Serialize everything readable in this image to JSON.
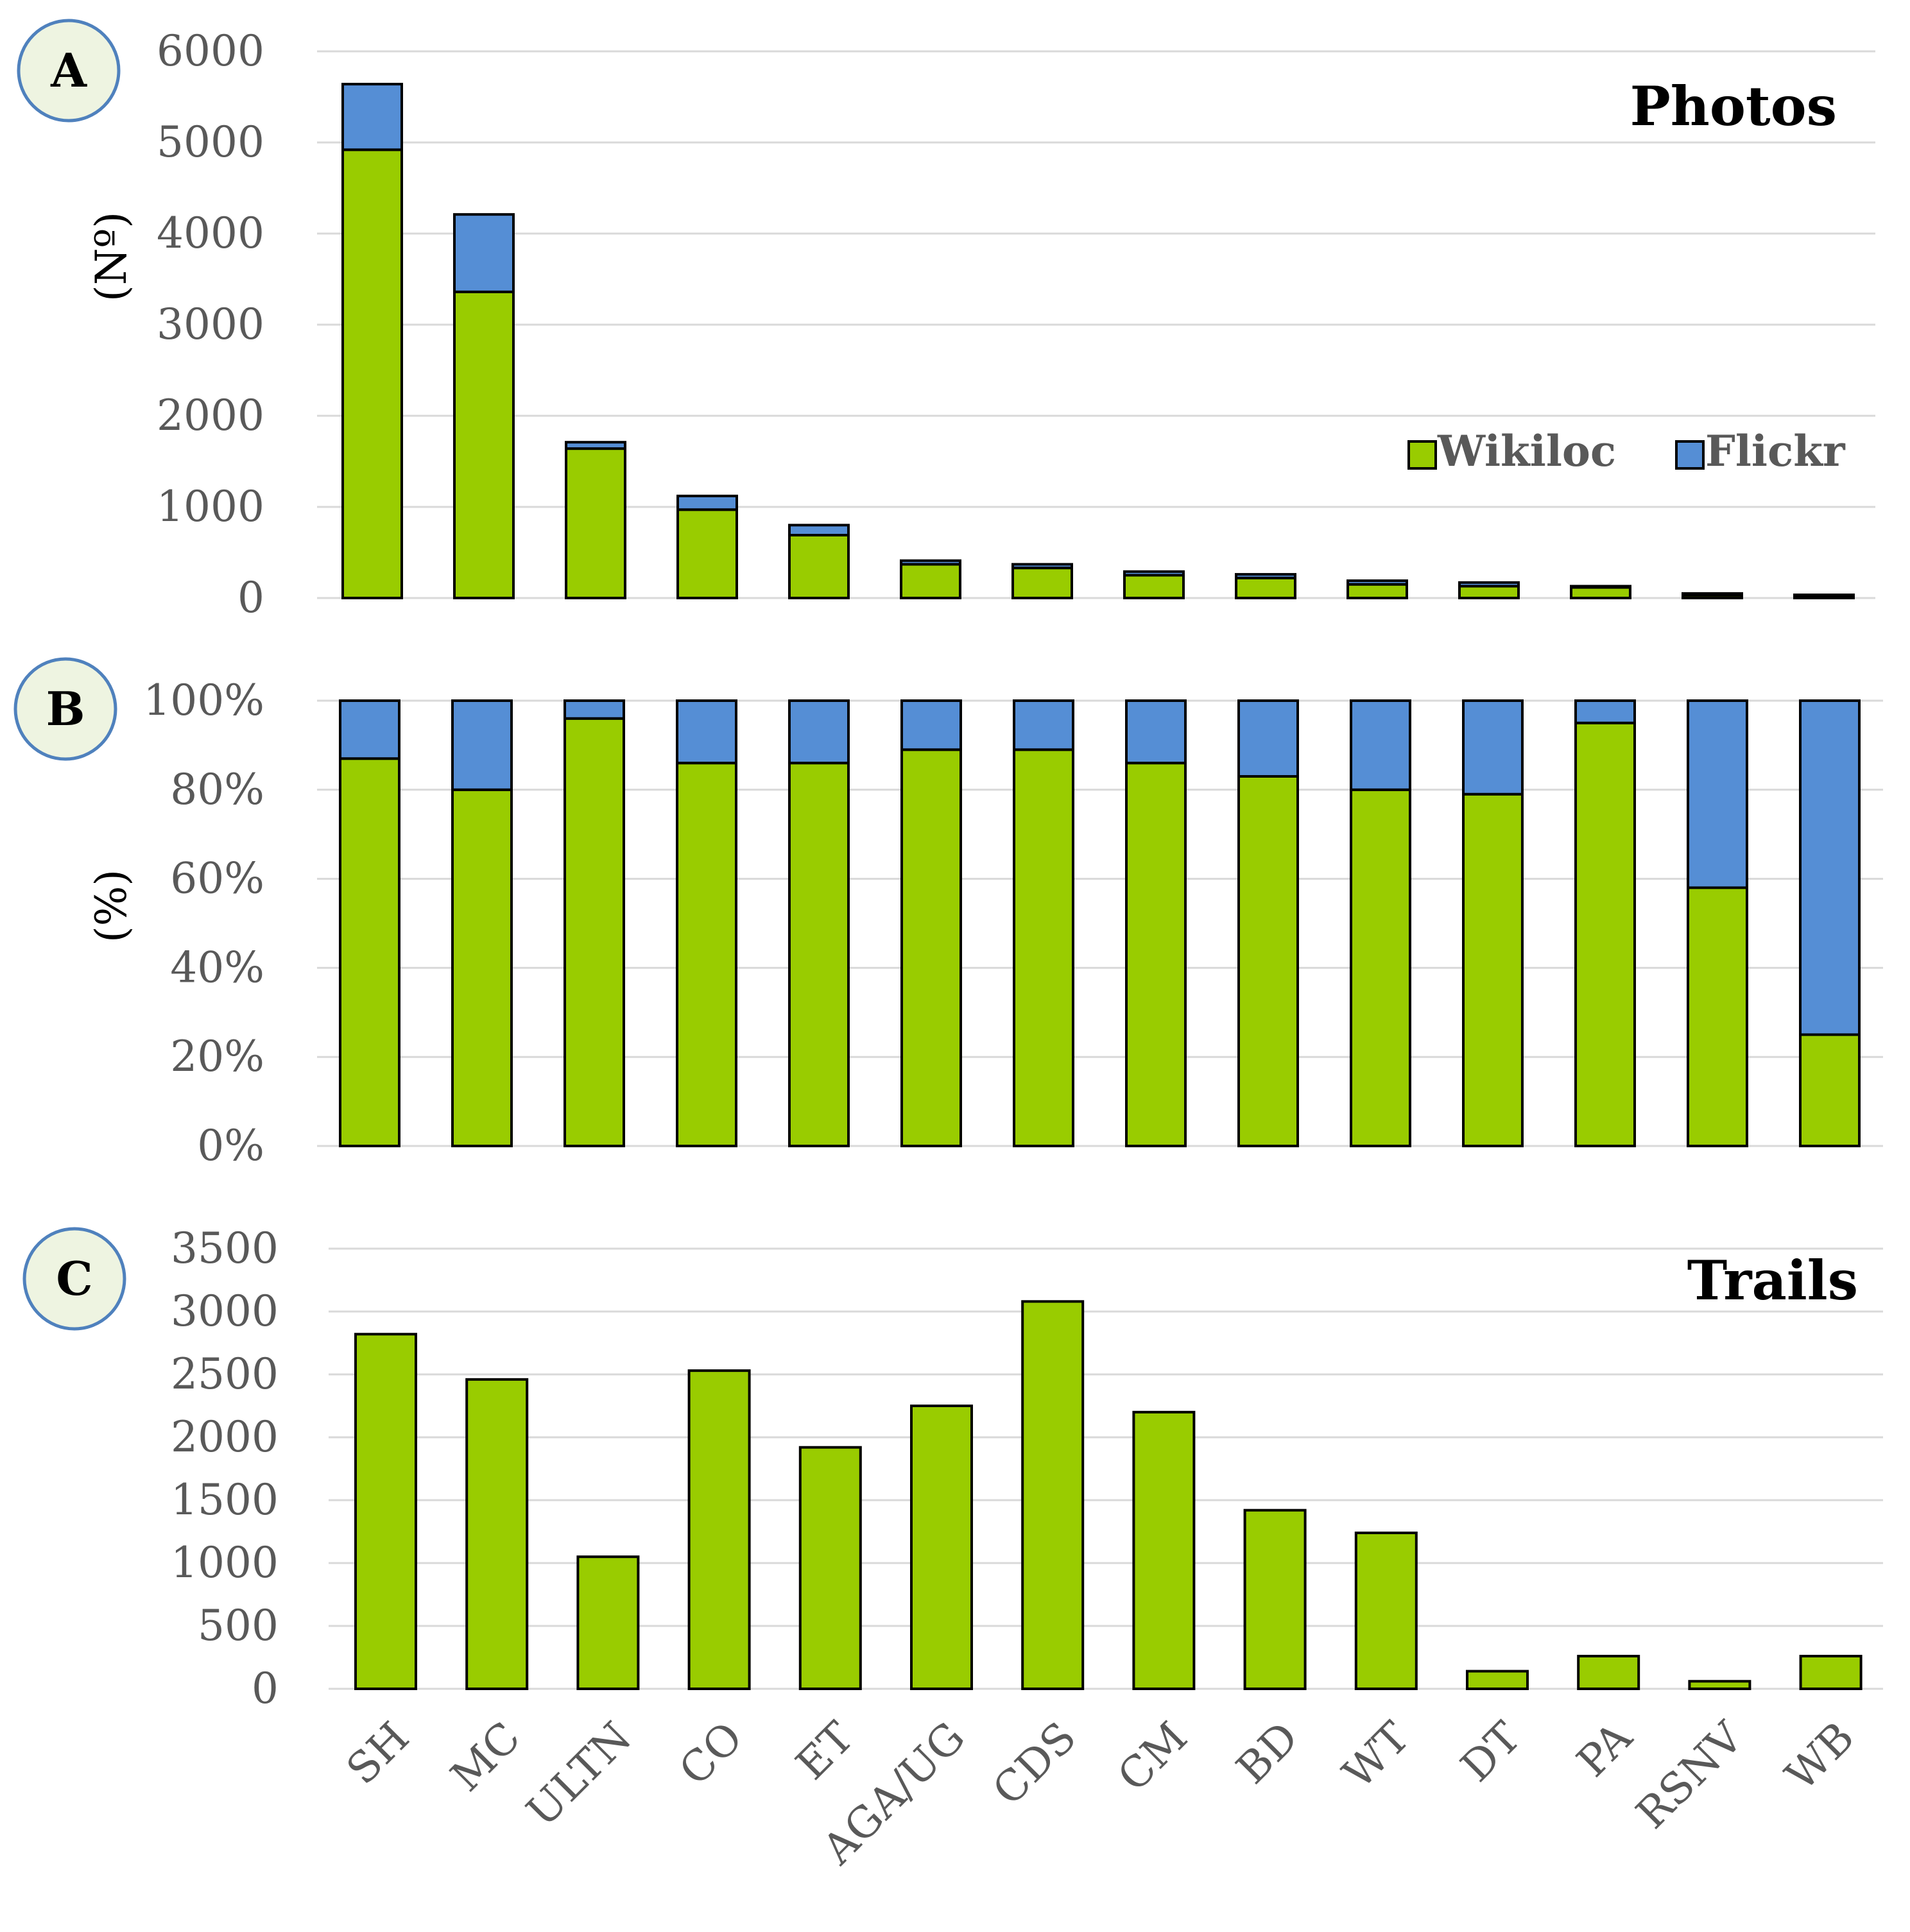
{
  "colors": {
    "wikiloc": "#99cc00",
    "flickr": "#558ed5",
    "bar_stroke": "#000000",
    "grid": "#d9d9d9",
    "badge_fill": "#eef4e1",
    "badge_stroke": "#4f81bd"
  },
  "categories": [
    "SH",
    "MC",
    "ULTN",
    "CO",
    "ET",
    "AGA/UG",
    "CDS",
    "CM",
    "BD",
    "WT",
    "DT",
    "PA",
    "RSNV",
    "WB"
  ],
  "chart_data": [
    {
      "panel": "A",
      "type": "bar",
      "stacked": true,
      "title": "Photos",
      "xlabel": "",
      "ylabel": "(Nº)",
      "ylim": [
        0,
        6000
      ],
      "yticks": [
        "0",
        "1000",
        "2000",
        "3000",
        "4000",
        "5000",
        "6000"
      ],
      "grid": true,
      "legend_position": "right",
      "categories": [
        "SH",
        "MC",
        "ULTN",
        "CO",
        "ET",
        "AGA/UG",
        "CDS",
        "CM",
        "BD",
        "WT",
        "DT",
        "PA",
        "RSNV",
        "WB"
      ],
      "series": [
        {
          "name": "Wikiloc",
          "values": [
            4920,
            3360,
            1640,
            970,
            690,
            370,
            330,
            250,
            220,
            150,
            130,
            120,
            30,
            15
          ]
        },
        {
          "name": "Flickr",
          "values": [
            720,
            850,
            70,
            150,
            110,
            40,
            40,
            40,
            40,
            40,
            40,
            10,
            20,
            20
          ]
        }
      ]
    },
    {
      "panel": "B",
      "type": "bar",
      "stacked": true,
      "percent": true,
      "title": "",
      "xlabel": "",
      "ylabel": "(%)",
      "ylim": [
        0,
        100
      ],
      "yticks": [
        "0%",
        "20%",
        "40%",
        "60%",
        "80%",
        "100%"
      ],
      "grid": true,
      "categories": [
        "SH",
        "MC",
        "ULTN",
        "CO",
        "ET",
        "AGA/UG",
        "CDS",
        "CM",
        "BD",
        "WT",
        "DT",
        "PA",
        "RSNV",
        "WB"
      ],
      "series": [
        {
          "name": "Wikiloc",
          "values": [
            87,
            80,
            96,
            86,
            86,
            89,
            89,
            86,
            83,
            80,
            79,
            95,
            58,
            25
          ]
        },
        {
          "name": "Flickr",
          "values": [
            13,
            20,
            4,
            14,
            14,
            11,
            11,
            14,
            17,
            20,
            21,
            5,
            42,
            75
          ]
        }
      ]
    },
    {
      "panel": "C",
      "type": "bar",
      "title": "Trails",
      "xlabel": "",
      "ylabel": "",
      "ylim": [
        0,
        3500
      ],
      "yticks": [
        "0",
        "500",
        "1000",
        "1500",
        "2000",
        "2500",
        "3000",
        "3500"
      ],
      "grid": true,
      "categories": [
        "SH",
        "MC",
        "ULTN",
        "CO",
        "ET",
        "AGA/UG",
        "CDS",
        "CM",
        "BD",
        "WT",
        "DT",
        "PA",
        "RSNV",
        "WB"
      ],
      "series": [
        {
          "values": [
            2820,
            2460,
            1050,
            2530,
            1920,
            2250,
            3080,
            2200,
            1420,
            1240,
            140,
            260,
            60,
            260
          ]
        }
      ]
    }
  ]
}
